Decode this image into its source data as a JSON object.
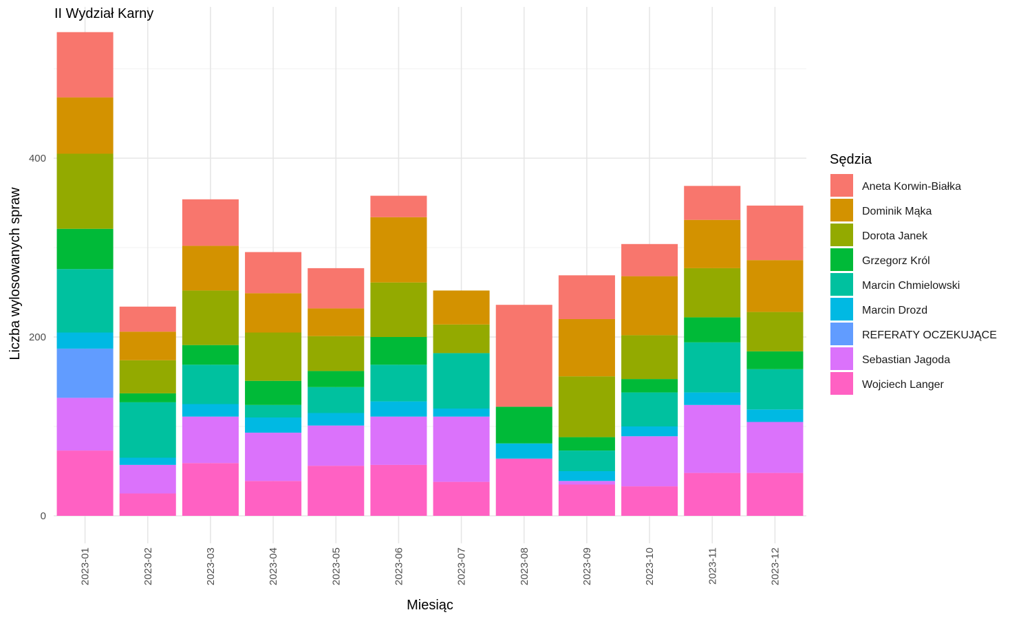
{
  "chart_data": {
    "type": "bar",
    "stacked": true,
    "title": "II Wydział Karny",
    "xlabel": "Miesiąc",
    "ylabel": "Liczba wylosowanych spraw",
    "ylim": [
      0,
      540
    ],
    "yticks": [
      0,
      200,
      400
    ],
    "grid": true,
    "legend": {
      "title": "Sędzia",
      "position": "right"
    },
    "categories": [
      "2023-01",
      "2023-02",
      "2023-03",
      "2023-04",
      "2023-05",
      "2023-06",
      "2023-07",
      "2023-08",
      "2023-09",
      "2023-10",
      "2023-11",
      "2023-12"
    ],
    "series": [
      {
        "name": "Wojciech Langer",
        "color": "#FF61C3",
        "values": [
          73,
          25,
          59,
          39,
          56,
          57,
          38,
          64,
          35,
          33,
          48,
          48
        ]
      },
      {
        "name": "Sebastian Jagoda",
        "color": "#DB72FB",
        "values": [
          59,
          32,
          52,
          54,
          45,
          54,
          73,
          0,
          4,
          56,
          76,
          57
        ]
      },
      {
        "name": "REFERATY OCZEKUJĄCE",
        "color": "#619CFF",
        "values": [
          55,
          0,
          0,
          0,
          0,
          0,
          0,
          0,
          0,
          0,
          0,
          0
        ]
      },
      {
        "name": "Marcin Drozd",
        "color": "#00B9E3",
        "values": [
          18,
          8,
          14,
          17,
          14,
          17,
          9,
          17,
          11,
          11,
          14,
          14
        ]
      },
      {
        "name": "Marcin Chmielowski",
        "color": "#00C19F",
        "values": [
          71,
          62,
          44,
          14,
          29,
          41,
          62,
          0,
          23,
          38,
          56,
          45
        ]
      },
      {
        "name": "Grzegorz Król",
        "color": "#00BA38",
        "values": [
          45,
          10,
          22,
          27,
          18,
          31,
          0,
          41,
          15,
          15,
          28,
          20
        ]
      },
      {
        "name": "Dorota Janek",
        "color": "#93AA00",
        "values": [
          84,
          37,
          61,
          54,
          39,
          61,
          32,
          0,
          68,
          49,
          55,
          44
        ]
      },
      {
        "name": "Dominik Mąka",
        "color": "#D39200",
        "values": [
          63,
          32,
          50,
          44,
          31,
          73,
          38,
          0,
          64,
          66,
          54,
          58
        ]
      },
      {
        "name": "Aneta Korwin-Białka",
        "color": "#F8766D",
        "values": [
          73,
          28,
          52,
          46,
          45,
          24,
          0,
          114,
          49,
          36,
          38,
          61
        ]
      }
    ],
    "legend_order": [
      "Aneta Korwin-Białka",
      "Dominik Mąka",
      "Dorota Janek",
      "Grzegorz Król",
      "Marcin Chmielowski",
      "Marcin Drozd",
      "REFERATY OCZEKUJĄCE",
      "Sebastian Jagoda",
      "Wojciech Langer"
    ]
  }
}
